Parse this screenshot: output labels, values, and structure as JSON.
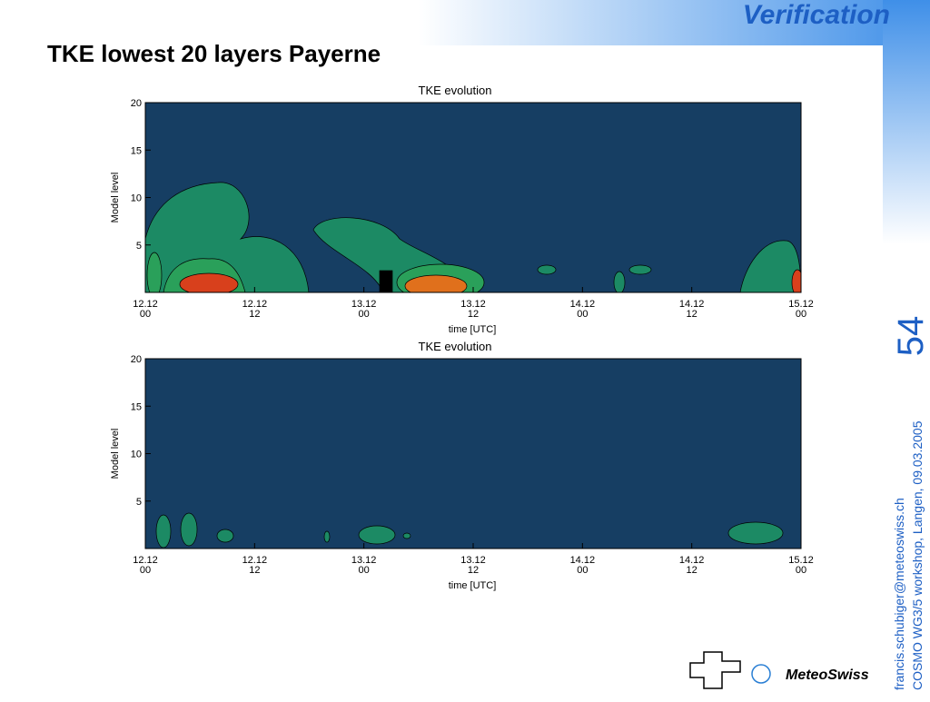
{
  "slide": {
    "header": "Verification",
    "title": "TKE lowest 20 layers Payerne",
    "page_number": "54",
    "footer_email": "francis.schubiger@meteoswiss.ch",
    "footer_event": "COSMO WG3/5 workshop, Langen, 09.03.2005",
    "logo": "MeteoSwiss"
  },
  "chart_data": [
    {
      "type": "contour",
      "title": "TKE evolution",
      "x_label": "time [UTC]",
      "y_label": "Model level",
      "xlim": [
        0,
        72
      ],
      "xticks": [
        {
          "value": 0,
          "label": [
            "12.12",
            "00"
          ]
        },
        {
          "value": 12,
          "label": [
            "12.12",
            "12"
          ]
        },
        {
          "value": 24,
          "label": [
            "13.12",
            "00"
          ]
        },
        {
          "value": 36,
          "label": [
            "13.12",
            "12"
          ]
        },
        {
          "value": 48,
          "label": [
            "14.12",
            "00"
          ]
        },
        {
          "value": 60,
          "label": [
            "14.12",
            "12"
          ]
        },
        {
          "value": 72,
          "label": [
            "15.12",
            "00"
          ]
        }
      ],
      "ylim": [
        0,
        20
      ],
      "yticks": [
        5,
        10,
        15,
        20
      ]
    },
    {
      "type": "contour",
      "title": "TKE evolution",
      "x_label": "time [UTC]",
      "y_label": "Model level",
      "xlim": [
        0,
        72
      ],
      "xticks": [
        {
          "value": 0,
          "label": [
            "12.12",
            "00"
          ]
        },
        {
          "value": 12,
          "label": [
            "12.12",
            "12"
          ]
        },
        {
          "value": 24,
          "label": [
            "13.12",
            "00"
          ]
        },
        {
          "value": 36,
          "label": [
            "13.12",
            "12"
          ]
        },
        {
          "value": 48,
          "label": [
            "14.12",
            "00"
          ]
        },
        {
          "value": 60,
          "label": [
            "14.12",
            "12"
          ]
        },
        {
          "value": 72,
          "label": [
            "15.12",
            "00"
          ]
        }
      ],
      "ylim": [
        0,
        20
      ],
      "yticks": [
        5,
        10,
        15,
        20
      ]
    }
  ]
}
